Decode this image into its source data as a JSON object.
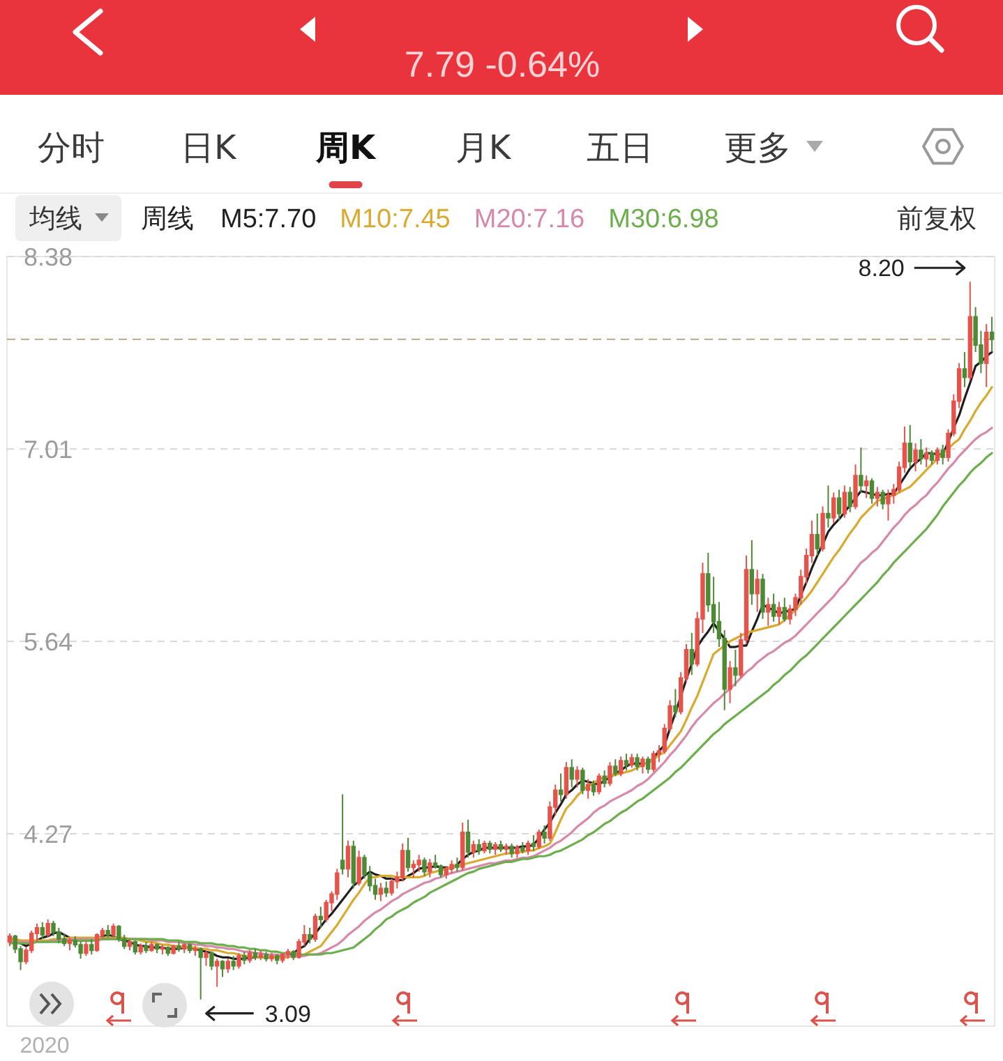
{
  "chart_data": {
    "type": "candlestick",
    "subtitle": "7.79 -0.64%",
    "legend_title": "周线",
    "legend": "top left",
    "grid": "y",
    "annotations": [
      "分时",
      "日K",
      "周K",
      "月K",
      "五日",
      "更多",
      "均线",
      "前复权",
      "2020",
      "8.20",
      "3.09"
    ],
    "ylim": [
      2.9,
      8.38
    ],
    "yticks": [
      8.38,
      7.01,
      5.64,
      4.27
    ],
    "ref_lines": [
      {
        "axis": "y",
        "value": 7.79,
        "color": "#b5a78c",
        "line_style": "dashed"
      }
    ],
    "categories": [
      null,
      null,
      null,
      null,
      null,
      null,
      null,
      null,
      null,
      null,
      null,
      null,
      null,
      null,
      null,
      null,
      null,
      null,
      null,
      null,
      null,
      null,
      null,
      null,
      null,
      null,
      null,
      null,
      null,
      null,
      null,
      null,
      null,
      null,
      null,
      null,
      null,
      null,
      null,
      null,
      null,
      null,
      null,
      null,
      null,
      null,
      null,
      null,
      null,
      null,
      null,
      null,
      null,
      null,
      null,
      null,
      null,
      null,
      null,
      null,
      null,
      null,
      null,
      null,
      null,
      null,
      null,
      null,
      null,
      null,
      null,
      null,
      null,
      null,
      null,
      null,
      null,
      null,
      null,
      null,
      null,
      null,
      null,
      null,
      null,
      null,
      null,
      null,
      null,
      null,
      null,
      null,
      null,
      null,
      null,
      null,
      null,
      null,
      null,
      null,
      null,
      null,
      null,
      null,
      null,
      null,
      null,
      null,
      null,
      null,
      null,
      null,
      null,
      null,
      null,
      null,
      null,
      null,
      null,
      null,
      null,
      null,
      null,
      null,
      null,
      null,
      null,
      null,
      null,
      null,
      null,
      null,
      null,
      null,
      null,
      null,
      null,
      null,
      null,
      null,
      null,
      null,
      null,
      null,
      null,
      null,
      null,
      null,
      null,
      null,
      null,
      null,
      null,
      null,
      null,
      null,
      null,
      null,
      null,
      null,
      null,
      null,
      null,
      null,
      null,
      null,
      null,
      null,
      null,
      null,
      null,
      null,
      null,
      null,
      null,
      null,
      null,
      null,
      null,
      null,
      null
    ],
    "ohlc": [
      [
        3.5,
        3.56,
        3.47,
        3.54
      ],
      [
        3.54,
        3.55,
        3.42,
        3.45
      ],
      [
        3.45,
        3.47,
        3.3,
        3.36
      ],
      [
        3.36,
        3.46,
        3.34,
        3.44
      ],
      [
        3.44,
        3.58,
        3.42,
        3.56
      ],
      [
        3.56,
        3.63,
        3.5,
        3.6
      ],
      [
        3.6,
        3.64,
        3.52,
        3.55
      ],
      [
        3.55,
        3.66,
        3.53,
        3.63
      ],
      [
        3.63,
        3.65,
        3.54,
        3.57
      ],
      [
        3.57,
        3.6,
        3.49,
        3.52
      ],
      [
        3.52,
        3.56,
        3.47,
        3.49
      ],
      [
        3.49,
        3.53,
        3.44,
        3.51
      ],
      [
        3.51,
        3.54,
        3.46,
        3.48
      ],
      [
        3.48,
        3.5,
        3.38,
        3.42
      ],
      [
        3.42,
        3.5,
        3.4,
        3.48
      ],
      [
        3.48,
        3.52,
        3.41,
        3.44
      ],
      [
        3.44,
        3.56,
        3.43,
        3.55
      ],
      [
        3.55,
        3.6,
        3.52,
        3.58
      ],
      [
        3.58,
        3.62,
        3.53,
        3.55
      ],
      [
        3.55,
        3.63,
        3.53,
        3.61
      ],
      [
        3.61,
        3.62,
        3.5,
        3.52
      ],
      [
        3.52,
        3.55,
        3.45,
        3.47
      ],
      [
        3.47,
        3.52,
        3.44,
        3.5
      ],
      [
        3.5,
        3.51,
        3.41,
        3.43
      ],
      [
        3.43,
        3.49,
        3.41,
        3.47
      ],
      [
        3.47,
        3.5,
        3.42,
        3.44
      ],
      [
        3.44,
        3.5,
        3.43,
        3.48
      ],
      [
        3.48,
        3.49,
        3.42,
        3.45
      ],
      [
        3.45,
        3.48,
        3.41,
        3.46
      ],
      [
        3.46,
        3.47,
        3.4,
        3.42
      ],
      [
        3.42,
        3.48,
        3.41,
        3.47
      ],
      [
        3.47,
        3.5,
        3.43,
        3.45
      ],
      [
        3.45,
        3.49,
        3.42,
        3.48
      ],
      [
        3.48,
        3.49,
        3.42,
        3.44
      ],
      [
        3.44,
        3.47,
        3.4,
        3.45
      ],
      [
        3.45,
        3.46,
        3.09,
        3.39
      ],
      [
        3.39,
        3.44,
        3.33,
        3.42
      ],
      [
        3.42,
        3.43,
        3.3,
        3.33
      ],
      [
        3.33,
        3.38,
        3.18,
        3.36
      ],
      [
        3.36,
        3.37,
        3.25,
        3.31
      ],
      [
        3.31,
        3.38,
        3.28,
        3.36
      ],
      [
        3.36,
        3.4,
        3.3,
        3.33
      ],
      [
        3.33,
        3.42,
        3.31,
        3.4
      ],
      [
        3.4,
        3.43,
        3.34,
        3.37
      ],
      [
        3.37,
        3.44,
        3.35,
        3.42
      ],
      [
        3.42,
        3.45,
        3.37,
        3.39
      ],
      [
        3.39,
        3.44,
        3.37,
        3.41
      ],
      [
        3.41,
        3.43,
        3.36,
        3.38
      ],
      [
        3.38,
        3.42,
        3.36,
        3.4
      ],
      [
        3.4,
        3.41,
        3.34,
        3.37
      ],
      [
        3.37,
        3.42,
        3.35,
        3.41
      ],
      [
        3.41,
        3.45,
        3.38,
        3.43
      ],
      [
        3.43,
        3.44,
        3.37,
        3.39
      ],
      [
        3.39,
        3.52,
        3.38,
        3.5
      ],
      [
        3.5,
        3.62,
        3.47,
        3.55
      ],
      [
        3.55,
        3.6,
        3.49,
        3.52
      ],
      [
        3.52,
        3.7,
        3.5,
        3.68
      ],
      [
        3.68,
        3.75,
        3.6,
        3.66
      ],
      [
        3.66,
        3.8,
        3.64,
        3.78
      ],
      [
        3.78,
        3.86,
        3.72,
        3.84
      ],
      [
        3.84,
        4.02,
        3.8,
        3.99
      ],
      [
        4.08,
        4.55,
        3.98,
        4.02
      ],
      [
        4.02,
        4.22,
        3.96,
        4.18
      ],
      [
        4.18,
        4.22,
        3.88,
        3.92
      ],
      [
        3.92,
        4.15,
        3.9,
        4.1
      ],
      [
        4.1,
        4.12,
        3.95,
        3.98
      ],
      [
        3.98,
        4.04,
        3.86,
        3.9
      ],
      [
        3.9,
        3.95,
        3.8,
        3.84
      ],
      [
        3.84,
        3.92,
        3.79,
        3.88
      ],
      [
        3.88,
        3.93,
        3.82,
        3.85
      ],
      [
        3.85,
        3.95,
        3.83,
        3.93
      ],
      [
        3.93,
        4.0,
        3.88,
        3.96
      ],
      [
        3.96,
        4.2,
        3.93,
        4.15
      ],
      [
        4.15,
        4.24,
        4.0,
        4.03
      ],
      [
        4.03,
        4.08,
        3.96,
        4.05
      ],
      [
        4.05,
        4.12,
        4.0,
        4.08
      ],
      [
        4.08,
        4.1,
        3.97,
        4.0
      ],
      [
        4.0,
        4.09,
        3.96,
        4.06
      ],
      [
        4.06,
        4.12,
        4.02,
        4.04
      ],
      [
        4.04,
        4.05,
        3.96,
        3.98
      ],
      [
        3.98,
        4.04,
        3.95,
        4.02
      ],
      [
        4.02,
        4.08,
        3.99,
        4.05
      ],
      [
        4.05,
        4.1,
        4.0,
        4.03
      ],
      [
        4.03,
        4.35,
        4.01,
        4.28
      ],
      [
        4.28,
        4.37,
        4.1,
        4.14
      ],
      [
        4.14,
        4.22,
        4.1,
        4.19
      ],
      [
        4.19,
        4.23,
        4.12,
        4.15
      ],
      [
        4.15,
        4.22,
        4.13,
        4.2
      ],
      [
        4.2,
        4.22,
        4.13,
        4.16
      ],
      [
        4.16,
        4.21,
        4.12,
        4.19
      ],
      [
        4.19,
        4.22,
        4.14,
        4.16
      ],
      [
        4.16,
        4.2,
        4.12,
        4.18
      ],
      [
        4.18,
        4.2,
        4.1,
        4.13
      ],
      [
        4.13,
        4.19,
        4.1,
        4.17
      ],
      [
        4.17,
        4.21,
        4.13,
        4.15
      ],
      [
        4.15,
        4.22,
        4.12,
        4.2
      ],
      [
        4.2,
        4.26,
        4.15,
        4.18
      ],
      [
        4.18,
        4.3,
        4.16,
        4.28
      ],
      [
        4.28,
        4.33,
        4.2,
        4.24
      ],
      [
        4.24,
        4.5,
        4.22,
        4.46
      ],
      [
        4.46,
        4.62,
        4.4,
        4.58
      ],
      [
        4.58,
        4.7,
        4.5,
        4.55
      ],
      [
        4.55,
        4.78,
        4.52,
        4.74
      ],
      [
        4.74,
        4.8,
        4.6,
        4.66
      ],
      [
        4.66,
        4.75,
        4.6,
        4.72
      ],
      [
        4.72,
        4.74,
        4.55,
        4.58
      ],
      [
        4.58,
        4.66,
        4.52,
        4.62
      ],
      [
        4.62,
        4.65,
        4.54,
        4.57
      ],
      [
        4.57,
        4.7,
        4.55,
        4.68
      ],
      [
        4.68,
        4.72,
        4.6,
        4.63
      ],
      [
        4.63,
        4.78,
        4.61,
        4.75
      ],
      [
        4.75,
        4.8,
        4.68,
        4.7
      ],
      [
        4.7,
        4.82,
        4.68,
        4.79
      ],
      [
        4.79,
        4.84,
        4.72,
        4.76
      ],
      [
        4.76,
        4.84,
        4.74,
        4.81
      ],
      [
        4.81,
        4.84,
        4.72,
        4.75
      ],
      [
        4.75,
        4.82,
        4.7,
        4.8
      ],
      [
        4.8,
        4.82,
        4.7,
        4.73
      ],
      [
        4.73,
        4.86,
        4.71,
        4.84
      ],
      [
        4.84,
        4.9,
        4.78,
        4.86
      ],
      [
        4.86,
        5.05,
        4.84,
        5.02
      ],
      [
        5.02,
        5.22,
        5.0,
        5.18
      ],
      [
        5.18,
        5.3,
        5.1,
        5.14
      ],
      [
        5.14,
        5.42,
        5.12,
        5.38
      ],
      [
        5.38,
        5.62,
        5.35,
        5.58
      ],
      [
        5.58,
        5.7,
        5.4,
        5.48
      ],
      [
        5.48,
        5.85,
        5.46,
        5.8
      ],
      [
        5.8,
        6.2,
        5.7,
        6.12
      ],
      [
        6.12,
        6.27,
        5.85,
        5.9
      ],
      [
        5.9,
        6.1,
        5.7,
        5.78
      ],
      [
        5.78,
        5.92,
        5.6,
        5.66
      ],
      [
        5.66,
        5.72,
        5.15,
        5.3
      ],
      [
        5.3,
        5.5,
        5.2,
        5.45
      ],
      [
        5.45,
        5.58,
        5.32,
        5.4
      ],
      [
        5.4,
        5.7,
        5.38,
        5.65
      ],
      [
        5.65,
        6.25,
        5.62,
        6.15
      ],
      [
        6.15,
        6.36,
        5.9,
        5.98
      ],
      [
        5.98,
        6.15,
        5.85,
        6.08
      ],
      [
        6.08,
        6.12,
        5.8,
        5.85
      ],
      [
        5.85,
        5.95,
        5.75,
        5.9
      ],
      [
        5.9,
        5.98,
        5.78,
        5.82
      ],
      [
        5.82,
        5.92,
        5.76,
        5.88
      ],
      [
        5.88,
        5.95,
        5.78,
        5.8
      ],
      [
        5.8,
        5.9,
        5.76,
        5.87
      ],
      [
        5.87,
        5.98,
        5.82,
        5.95
      ],
      [
        5.95,
        6.15,
        5.9,
        6.1
      ],
      [
        6.1,
        6.3,
        6.05,
        6.25
      ],
      [
        6.25,
        6.5,
        6.2,
        6.4
      ],
      [
        6.4,
        6.55,
        6.25,
        6.3
      ],
      [
        6.3,
        6.6,
        6.28,
        6.55
      ],
      [
        6.55,
        6.75,
        6.45,
        6.52
      ],
      [
        6.52,
        6.7,
        6.48,
        6.66
      ],
      [
        6.66,
        6.72,
        6.5,
        6.55
      ],
      [
        6.55,
        6.75,
        6.52,
        6.7
      ],
      [
        6.7,
        6.74,
        6.56,
        6.6
      ],
      [
        6.6,
        6.9,
        6.58,
        6.82
      ],
      [
        6.82,
        7.02,
        6.7,
        6.75
      ],
      [
        6.75,
        6.82,
        6.66,
        6.78
      ],
      [
        6.78,
        6.8,
        6.62,
        6.66
      ],
      [
        6.66,
        6.74,
        6.6,
        6.7
      ],
      [
        6.7,
        6.72,
        6.58,
        6.62
      ],
      [
        6.62,
        6.72,
        6.5,
        6.68
      ],
      [
        6.68,
        6.76,
        6.62,
        6.72
      ],
      [
        6.72,
        6.92,
        6.7,
        6.88
      ],
      [
        6.88,
        7.17,
        6.84,
        7.05
      ],
      [
        7.05,
        7.18,
        6.88,
        6.92
      ],
      [
        6.92,
        7.05,
        6.85,
        7.0
      ],
      [
        7.0,
        7.08,
        6.9,
        6.94
      ],
      [
        6.94,
        7.02,
        6.88,
        6.98
      ],
      [
        6.98,
        7.0,
        6.9,
        6.93
      ],
      [
        6.93,
        7.02,
        6.9,
        7.0
      ],
      [
        7.0,
        7.04,
        6.9,
        6.95
      ],
      [
        6.95,
        7.15,
        6.92,
        7.12
      ],
      [
        7.12,
        7.4,
        7.1,
        7.35
      ],
      [
        7.35,
        7.62,
        7.3,
        7.58
      ],
      [
        7.58,
        7.7,
        7.45,
        7.52
      ],
      [
        7.52,
        8.2,
        7.5,
        7.95
      ],
      [
        7.95,
        8.02,
        7.7,
        7.75
      ],
      [
        7.75,
        7.85,
        7.55,
        7.62
      ],
      [
        7.62,
        7.9,
        7.45,
        7.84
      ],
      [
        7.84,
        7.95,
        7.7,
        7.79
      ]
    ],
    "colors": [
      "#e5534b",
      "#4e8a35",
      "#4e8a35",
      "#e5534b",
      "#e5534b",
      "#e5534b",
      "#4e8a35",
      "#e5534b",
      "#4e8a35",
      "#4e8a35",
      "#4e8a35",
      "#e5534b",
      "#4e8a35",
      "#4e8a35",
      "#e5534b",
      "#4e8a35",
      "#e5534b",
      "#e5534b",
      "#4e8a35",
      "#e5534b",
      "#4e8a35",
      "#4e8a35",
      "#e5534b",
      "#4e8a35",
      "#e5534b",
      "#4e8a35",
      "#e5534b",
      "#4e8a35",
      "#e5534b",
      "#4e8a35",
      "#e5534b",
      "#4e8a35",
      "#e5534b",
      "#4e8a35",
      "#e5534b",
      "#4e8a35",
      "#e5534b",
      "#4e8a35",
      "#e5534b",
      "#4e8a35",
      "#e5534b",
      "#4e8a35",
      "#e5534b",
      "#4e8a35",
      "#e5534b",
      "#4e8a35",
      "#e5534b",
      "#4e8a35",
      "#e5534b",
      "#4e8a35",
      "#e5534b",
      "#e5534b",
      "#4e8a35",
      "#e5534b",
      "#e5534b",
      "#4e8a35",
      "#e5534b",
      "#4e8a35",
      "#e5534b",
      "#e5534b",
      "#e5534b",
      "#4e8a35",
      "#e5534b",
      "#4e8a35",
      "#e5534b",
      "#4e8a35",
      "#4e8a35",
      "#4e8a35",
      "#e5534b",
      "#4e8a35",
      "#e5534b",
      "#e5534b",
      "#e5534b",
      "#4e8a35",
      "#e5534b",
      "#e5534b",
      "#4e8a35",
      "#e5534b",
      "#4e8a35",
      "#4e8a35",
      "#e5534b",
      "#e5534b",
      "#4e8a35",
      "#e5534b",
      "#4e8a35",
      "#e5534b",
      "#4e8a35",
      "#e5534b",
      "#4e8a35",
      "#e5534b",
      "#4e8a35",
      "#e5534b",
      "#4e8a35",
      "#e5534b",
      "#4e8a35",
      "#e5534b",
      "#4e8a35",
      "#e5534b",
      "#4e8a35",
      "#e5534b",
      "#e5534b",
      "#4e8a35",
      "#e5534b",
      "#4e8a35",
      "#e5534b",
      "#4e8a35",
      "#e5534b",
      "#4e8a35",
      "#e5534b",
      "#4e8a35",
      "#e5534b",
      "#4e8a35",
      "#e5534b",
      "#4e8a35",
      "#e5534b",
      "#4e8a35",
      "#e5534b",
      "#4e8a35",
      "#e5534b",
      "#e5534b",
      "#e5534b",
      "#e5534b",
      "#4e8a35",
      "#e5534b",
      "#e5534b",
      "#4e8a35",
      "#e5534b",
      "#e5534b",
      "#4e8a35",
      "#4e8a35",
      "#4e8a35",
      "#4e8a35",
      "#e5534b",
      "#4e8a35",
      "#e5534b",
      "#e5534b",
      "#4e8a35",
      "#e5534b",
      "#4e8a35",
      "#e5534b",
      "#4e8a35",
      "#e5534b",
      "#4e8a35",
      "#e5534b",
      "#e5534b",
      "#e5534b",
      "#e5534b",
      "#e5534b",
      "#4e8a35",
      "#e5534b",
      "#4e8a35",
      "#e5534b",
      "#4e8a35",
      "#e5534b",
      "#4e8a35",
      "#e5534b",
      "#4e8a35",
      "#e5534b",
      "#4e8a35",
      "#e5534b",
      "#4e8a35",
      "#e5534b",
      "#e5534b",
      "#e5534b",
      "#e5534b",
      "#4e8a35",
      "#e5534b",
      "#4e8a35",
      "#e5534b",
      "#4e8a35",
      "#e5534b",
      "#4e8a35",
      "#e5534b",
      "#e5534b",
      "#e5534b",
      "#4e8a35",
      "#e5534b",
      "#4e8a35",
      "#4e8a35",
      "#e5534b",
      "#4e8a35"
    ],
    "series": [
      {
        "name": "M5:7.70",
        "type": "line",
        "color": "#1e1e1e",
        "values": [
          3.53,
          3.51,
          3.49,
          3.47,
          3.49,
          3.51,
          3.53,
          3.54,
          3.56,
          3.57,
          3.55,
          3.53,
          3.51,
          3.51,
          3.51,
          3.51,
          3.52,
          3.54,
          3.55,
          3.54,
          3.52,
          3.51,
          3.5,
          3.48,
          3.47,
          3.47,
          3.46,
          3.46,
          3.46,
          3.45,
          3.45,
          3.45,
          3.46,
          3.46,
          3.45,
          3.44,
          3.43,
          3.42,
          3.4,
          3.39,
          3.39,
          3.38,
          3.38,
          3.38,
          3.39,
          3.39,
          3.39,
          3.39,
          3.39,
          3.39,
          3.4,
          3.4,
          3.42,
          3.45,
          3.47,
          3.52,
          3.56,
          3.61,
          3.66,
          3.7,
          3.75,
          3.8,
          3.85,
          3.9,
          3.93,
          3.97,
          4.0,
          3.98,
          3.97,
          3.95,
          3.95,
          3.94,
          3.94,
          3.97,
          3.99,
          4.02,
          4.03,
          4.03,
          4.04,
          4.03,
          4.03,
          4.02,
          4.05,
          4.09,
          4.12,
          4.14,
          4.15,
          4.17,
          4.17,
          4.17,
          4.17,
          4.17,
          4.17,
          4.17,
          4.18,
          4.18,
          4.19,
          4.24,
          4.3,
          4.35,
          4.42,
          4.48,
          4.55,
          4.58,
          4.62,
          4.65,
          4.64,
          4.63,
          4.62,
          4.65,
          4.67,
          4.7,
          4.72,
          4.75,
          4.77,
          4.77,
          4.77,
          4.77,
          4.81,
          4.86,
          4.9,
          5.02,
          5.13,
          5.25,
          5.37,
          5.48,
          5.6,
          5.66,
          5.71,
          5.77,
          5.71,
          5.66,
          5.6,
          5.6,
          5.61,
          5.61,
          5.71,
          5.8,
          5.9,
          5.88,
          5.86,
          5.84,
          5.85,
          5.86,
          5.87,
          5.97,
          6.06,
          6.16,
          6.25,
          6.33,
          6.42,
          6.47,
          6.51,
          6.56,
          6.61,
          6.66,
          6.71,
          6.7,
          6.69,
          6.68,
          6.68,
          6.69,
          6.69,
          6.75,
          6.81,
          6.87,
          6.91,
          6.94,
          6.98,
          6.98,
          6.97,
          6.97,
          7.06,
          7.16,
          7.25,
          7.37,
          7.48,
          7.6,
          7.63,
          7.67,
          7.7
        ]
      },
      {
        "name": "M10:7.45",
        "type": "line",
        "color": "#d9aa30",
        "values": [
          3.52,
          3.52,
          3.51,
          3.51,
          3.51,
          3.51,
          3.51,
          3.51,
          3.52,
          3.52,
          3.52,
          3.53,
          3.53,
          3.53,
          3.53,
          3.53,
          3.53,
          3.53,
          3.53,
          3.53,
          3.53,
          3.53,
          3.52,
          3.52,
          3.51,
          3.5,
          3.5,
          3.49,
          3.48,
          3.48,
          3.47,
          3.47,
          3.46,
          3.46,
          3.46,
          3.45,
          3.45,
          3.44,
          3.44,
          3.43,
          3.42,
          3.42,
          3.41,
          3.4,
          3.4,
          3.39,
          3.39,
          3.39,
          3.39,
          3.39,
          3.39,
          3.39,
          3.4,
          3.4,
          3.41,
          3.43,
          3.45,
          3.47,
          3.52,
          3.57,
          3.62,
          3.68,
          3.74,
          3.8,
          3.85,
          3.91,
          3.96,
          3.96,
          3.97,
          3.97,
          3.97,
          3.96,
          3.96,
          3.96,
          3.96,
          3.96,
          3.97,
          3.99,
          4.0,
          4.01,
          4.02,
          4.03,
          4.04,
          4.05,
          4.06,
          4.07,
          4.08,
          4.09,
          4.1,
          4.11,
          4.12,
          4.13,
          4.13,
          4.14,
          4.14,
          4.15,
          4.15,
          4.17,
          4.18,
          4.2,
          4.28,
          4.37,
          4.45,
          4.49,
          4.54,
          4.58,
          4.61,
          4.63,
          4.66,
          4.67,
          4.68,
          4.69,
          4.7,
          4.71,
          4.72,
          4.74,
          4.76,
          4.78,
          4.8,
          4.83,
          4.85,
          4.9,
          4.95,
          5.0,
          5.08,
          5.17,
          5.25,
          5.35,
          5.45,
          5.55,
          5.58,
          5.61,
          5.64,
          5.66,
          5.68,
          5.7,
          5.71,
          5.72,
          5.73,
          5.74,
          5.75,
          5.76,
          5.79,
          5.83,
          5.86,
          5.91,
          5.95,
          6.0,
          6.06,
          6.12,
          6.18,
          6.24,
          6.29,
          6.35,
          6.41,
          6.46,
          6.52,
          6.56,
          6.6,
          6.64,
          6.65,
          6.67,
          6.68,
          6.7,
          6.72,
          6.74,
          6.78,
          6.82,
          6.86,
          6.9,
          6.94,
          6.98,
          7.01,
          7.05,
          7.08,
          7.15,
          7.21,
          7.28,
          7.34,
          7.39,
          7.45
        ]
      },
      {
        "name": "M20:7.16",
        "type": "line",
        "color": "#d689a8",
        "values": [
          3.5,
          3.5,
          3.5,
          3.5,
          3.5,
          3.5,
          3.5,
          3.5,
          3.51,
          3.51,
          3.51,
          3.52,
          3.52,
          3.52,
          3.52,
          3.52,
          3.52,
          3.52,
          3.52,
          3.52,
          3.52,
          3.52,
          3.52,
          3.52,
          3.52,
          3.52,
          3.51,
          3.51,
          3.51,
          3.5,
          3.5,
          3.5,
          3.49,
          3.49,
          3.48,
          3.48,
          3.47,
          3.47,
          3.46,
          3.46,
          3.45,
          3.45,
          3.44,
          3.43,
          3.43,
          3.42,
          3.42,
          3.41,
          3.41,
          3.41,
          3.4,
          3.4,
          3.4,
          3.4,
          3.4,
          3.41,
          3.41,
          3.42,
          3.44,
          3.46,
          3.48,
          3.51,
          3.55,
          3.58,
          3.61,
          3.65,
          3.68,
          3.71,
          3.73,
          3.76,
          3.79,
          3.81,
          3.84,
          3.86,
          3.88,
          3.9,
          3.92,
          3.93,
          3.95,
          3.96,
          3.98,
          3.99,
          4.0,
          4.01,
          4.02,
          4.03,
          4.04,
          4.05,
          4.06,
          4.06,
          4.07,
          4.08,
          4.08,
          4.09,
          4.1,
          4.1,
          4.11,
          4.13,
          4.15,
          4.17,
          4.2,
          4.22,
          4.25,
          4.28,
          4.32,
          4.35,
          4.38,
          4.42,
          4.45,
          4.47,
          4.5,
          4.52,
          4.54,
          4.56,
          4.58,
          4.61,
          4.63,
          4.66,
          4.7,
          4.74,
          4.78,
          4.83,
          4.87,
          4.92,
          4.97,
          5.03,
          5.08,
          5.12,
          5.16,
          5.2,
          5.23,
          5.27,
          5.3,
          5.34,
          5.38,
          5.42,
          5.45,
          5.49,
          5.52,
          5.55,
          5.57,
          5.6,
          5.63,
          5.65,
          5.68,
          5.72,
          5.76,
          5.8,
          5.84,
          5.88,
          5.92,
          5.96,
          6.01,
          6.05,
          6.1,
          6.15,
          6.2,
          6.23,
          6.27,
          6.3,
          6.35,
          6.4,
          6.45,
          6.49,
          6.54,
          6.58,
          6.61,
          6.65,
          6.68,
          6.73,
          6.77,
          6.82,
          6.87,
          6.91,
          6.96,
          7.0,
          7.04,
          7.08,
          7.11,
          7.13,
          7.16
        ]
      },
      {
        "name": "M30:6.98",
        "type": "line",
        "color": "#6cae4c",
        "values": [
          3.49,
          3.49,
          3.49,
          3.49,
          3.49,
          3.5,
          3.5,
          3.5,
          3.5,
          3.5,
          3.5,
          3.51,
          3.51,
          3.51,
          3.51,
          3.51,
          3.51,
          3.52,
          3.52,
          3.52,
          3.52,
          3.52,
          3.52,
          3.52,
          3.52,
          3.52,
          3.52,
          3.52,
          3.52,
          3.51,
          3.51,
          3.51,
          3.5,
          3.5,
          3.5,
          3.49,
          3.49,
          3.49,
          3.48,
          3.48,
          3.47,
          3.47,
          3.46,
          3.46,
          3.45,
          3.45,
          3.44,
          3.44,
          3.43,
          3.43,
          3.42,
          3.42,
          3.42,
          3.41,
          3.41,
          3.41,
          3.41,
          3.41,
          3.42,
          3.42,
          3.43,
          3.44,
          3.45,
          3.46,
          3.49,
          3.52,
          3.55,
          3.59,
          3.62,
          3.66,
          3.68,
          3.71,
          3.73,
          3.75,
          3.78,
          3.8,
          3.82,
          3.85,
          3.87,
          3.89,
          3.91,
          3.93,
          3.95,
          3.97,
          3.99,
          4.0,
          4.02,
          4.03,
          4.04,
          4.05,
          4.06,
          4.07,
          4.07,
          4.08,
          4.09,
          4.09,
          4.1,
          4.11,
          4.11,
          4.12,
          4.14,
          4.15,
          4.17,
          4.19,
          4.21,
          4.23,
          4.26,
          4.28,
          4.31,
          4.34,
          4.36,
          4.39,
          4.42,
          4.44,
          4.47,
          4.5,
          4.52,
          4.55,
          4.58,
          4.61,
          4.64,
          4.67,
          4.71,
          4.74,
          4.78,
          4.82,
          4.86,
          4.9,
          4.94,
          4.98,
          5.01,
          5.05,
          5.08,
          5.11,
          5.14,
          5.17,
          5.2,
          5.23,
          5.26,
          5.29,
          5.33,
          5.36,
          5.4,
          5.43,
          5.47,
          5.51,
          5.54,
          5.58,
          5.62,
          5.66,
          5.7,
          5.74,
          5.78,
          5.82,
          5.86,
          5.9,
          5.94,
          5.98,
          6.02,
          6.06,
          6.11,
          6.15,
          6.2,
          6.24,
          6.28,
          6.32,
          6.36,
          6.4,
          6.44,
          6.49,
          6.54,
          6.6,
          6.65,
          6.7,
          6.75,
          6.79,
          6.84,
          6.88,
          6.91,
          6.95,
          6.98
        ]
      }
    ]
  }
}
